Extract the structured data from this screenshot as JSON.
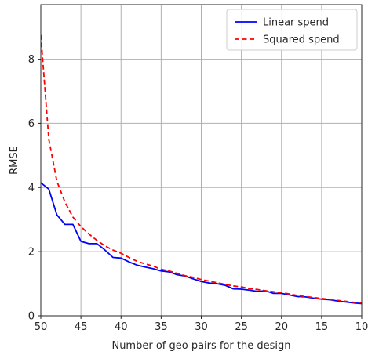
{
  "chart_data": {
    "type": "line",
    "xlabel": "Number of geo pairs for the design",
    "ylabel": "RMSE",
    "xlim": [
      50,
      10
    ],
    "ylim": [
      0,
      9.7
    ],
    "x_inverted": true,
    "grid": true,
    "legend_position": "top-right",
    "xticks": [
      50,
      45,
      40,
      35,
      30,
      25,
      20,
      15,
      10
    ],
    "yticks": [
      0,
      2,
      4,
      6,
      8
    ],
    "series": [
      {
        "name": "Linear spend",
        "color": "#0000ff",
        "style": "solid",
        "x": [
          50,
          49,
          48,
          47,
          46,
          45,
          44,
          43,
          42,
          41,
          40,
          39,
          38,
          37,
          36,
          35,
          34,
          33,
          32,
          31,
          30,
          29,
          28,
          27,
          26,
          25,
          24,
          23,
          22,
          21,
          20,
          19,
          18,
          17,
          16,
          15,
          14,
          13,
          12,
          11,
          10
        ],
        "values": [
          4.15,
          3.95,
          3.15,
          2.85,
          2.85,
          2.32,
          2.25,
          2.25,
          2.05,
          1.82,
          1.8,
          1.68,
          1.58,
          1.52,
          1.47,
          1.4,
          1.37,
          1.28,
          1.24,
          1.15,
          1.07,
          1.02,
          1.0,
          0.95,
          0.84,
          0.83,
          0.8,
          0.76,
          0.78,
          0.7,
          0.7,
          0.65,
          0.6,
          0.59,
          0.55,
          0.52,
          0.5,
          0.46,
          0.43,
          0.4,
          0.38
        ]
      },
      {
        "name": "Squared spend",
        "color": "#ff0000",
        "style": "dashed",
        "x": [
          50,
          49,
          48,
          47,
          46,
          45,
          44,
          43,
          42,
          41,
          40,
          39,
          38,
          37,
          36,
          35,
          34,
          33,
          32,
          31,
          30,
          29,
          28,
          27,
          26,
          25,
          24,
          23,
          22,
          21,
          20,
          19,
          18,
          17,
          16,
          15,
          14,
          13,
          12,
          11,
          10
        ],
        "values": [
          8.75,
          5.5,
          4.2,
          3.55,
          3.08,
          2.78,
          2.55,
          2.35,
          2.18,
          2.05,
          1.95,
          1.82,
          1.7,
          1.62,
          1.55,
          1.45,
          1.4,
          1.32,
          1.25,
          1.2,
          1.13,
          1.08,
          1.03,
          0.98,
          0.93,
          0.9,
          0.85,
          0.82,
          0.78,
          0.75,
          0.72,
          0.68,
          0.63,
          0.6,
          0.57,
          0.54,
          0.51,
          0.48,
          0.45,
          0.42,
          0.4
        ]
      }
    ]
  }
}
